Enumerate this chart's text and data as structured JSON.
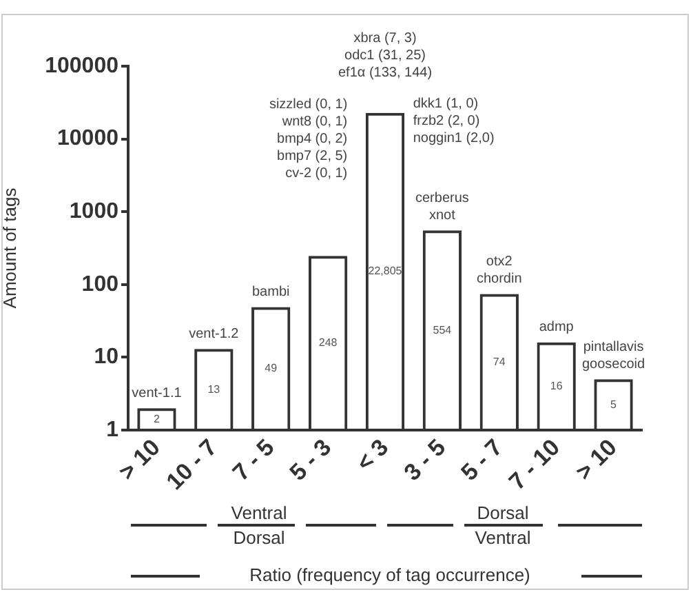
{
  "chart_data": {
    "type": "bar",
    "ylabel": "Amount of tags",
    "xlabel": "Ratio (frequency of tag occurrence)",
    "categories": [
      "> 10",
      "10 - 7",
      "7 - 5",
      "5 - 3",
      "< 3",
      "3 - 5",
      "5 - 7",
      "7 - 10",
      "> 10"
    ],
    "values": [
      2,
      13,
      49,
      248,
      22805,
      554,
      74,
      16,
      5
    ],
    "value_labels": [
      "2",
      "13",
      "49",
      "248",
      "22,805",
      "554",
      "74",
      "16",
      "5"
    ],
    "color": "#333333",
    "log": true,
    "ylim": [
      1,
      100000
    ],
    "yticks": [
      1,
      10,
      100,
      1000,
      10000,
      100000
    ],
    "grid": false,
    "legend": false,
    "annotations": [
      "vent-1.1",
      "vent-1.2",
      "bambi",
      "sizzled (0, 1)",
      "wnt8 (0, 1)",
      "bmp4 (0, 2)",
      "bmp7 (2, 5)",
      "cv-2 (0, 1)",
      "xbra (7, 3)",
      "odc1 (31, 25)",
      "ef1α (133, 144)",
      "dkk1 (1, 0)",
      "frzb2 (2, 0)",
      "noggin1 (2,0)",
      "cerberus",
      "xnot",
      "otx2",
      "chordin",
      "admp",
      "pintallavis",
      "goosecoid",
      "Ventral",
      "Dorsal",
      "Dorsal",
      "Ventral"
    ]
  }
}
